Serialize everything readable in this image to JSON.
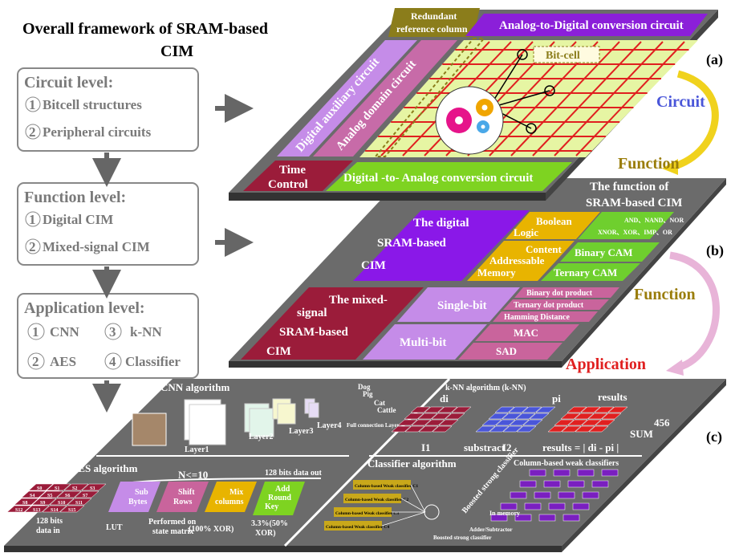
{
  "title": [
    "Overall framework of SRAM-based",
    "CIM"
  ],
  "levels": [
    {
      "title": "Circuit level:",
      "items": [
        {
          "num": "1",
          "text": "Bitcell structures"
        },
        {
          "num": "2",
          "text": "Peripheral  circuits"
        }
      ]
    },
    {
      "title": "Function level:",
      "items": [
        {
          "num": "1",
          "text": "Digital CIM"
        },
        {
          "num": "2",
          "text": "Mixed-signal CIM"
        }
      ]
    },
    {
      "title": "Application level:",
      "items": [
        {
          "num": "1",
          "text": "CNN"
        },
        {
          "num": "3",
          "text": "k-NN"
        },
        {
          "num": "2",
          "text": "AES"
        },
        {
          "num": "4",
          "text": "Classifier"
        }
      ]
    }
  ],
  "layer_a": {
    "tag": "(a)",
    "redundant": [
      "Redundant",
      "reference column"
    ],
    "adc": "Analog-to-Digital  conversion circuit",
    "bitcell": "Bit-cell",
    "digital_aux": "Digital auxiliary circuit",
    "analog_domain": "Analog domain  circuit",
    "time_control": [
      "Time",
      "Control"
    ],
    "dac": "Digital -to- Analog conversion circuit"
  },
  "side": {
    "circuit": "Circuit",
    "function_1": "Function",
    "function_2": "Function",
    "application": "Application"
  },
  "layer_b": {
    "tag": "(b)",
    "title": [
      "The  function of",
      "SRAM-based CIM"
    ],
    "digital": [
      "The digital",
      "SRAM-based",
      "CIM"
    ],
    "boolean": [
      "Boolean",
      "Logic"
    ],
    "ops": [
      "AND、NAND、NOR",
      "XNOR、XOR、IMP、OR"
    ],
    "cam": [
      "Content",
      "Addressable",
      "Memory"
    ],
    "binary_cam": "Binary CAM",
    "ternary_cam": "Ternary CAM",
    "mixed": [
      "The mixed-",
      "signal",
      "SRAM-based",
      "CIM"
    ],
    "single_bit": "Single-bit",
    "multi_bit": "Multi-bit",
    "binary_dot": "Binary dot product",
    "ternary_dot": "Ternary dot product",
    "hamming": "Hamming Distance",
    "mac": "MAC",
    "sad": "SAD"
  },
  "layer_c": {
    "tag": "(c)",
    "cnn": {
      "title": "CNN algorithm",
      "layers": [
        "Layer1",
        "Layer2",
        "Layer3",
        "Layer4"
      ],
      "classes": [
        "Dog",
        "Pig",
        "Cat",
        "Cattle"
      ],
      "fc": "Full connection Layer"
    },
    "aes": {
      "title": "AES algorithm",
      "rounds": "N<=10",
      "out": "128 bits data out",
      "sbox": [
        "S0",
        "S1",
        "S2",
        "S3",
        "S4",
        "S5",
        "S6",
        "S7",
        "S8",
        "S9",
        "S10",
        "S11",
        "S12",
        "S13",
        "S14",
        "S15"
      ],
      "steps": [
        [
          "Sub",
          "Bytes"
        ],
        [
          "Shift",
          "Rows"
        ],
        [
          "Mix",
          "columns"
        ],
        [
          "Add",
          "Round",
          "Key"
        ]
      ],
      "data_in": [
        "128 bits",
        "data in"
      ],
      "lut": "LUT",
      "performed": [
        "Performed on",
        "state matrix"
      ],
      "xor100": "(100% XOR)",
      "xor50": [
        "3.3%(50%",
        "XOR)"
      ]
    },
    "knn": {
      "title": "k-NN algorithm (k-NN)",
      "di": "di",
      "pi": "pi",
      "results": "results",
      "sum_value": "456",
      "sum": "SUM",
      "i1": "I1",
      "substract": "substract",
      "i2": "I2",
      "formula": "results = | di - pi |"
    },
    "classifier": {
      "title": "Classifier algorithm",
      "weak": "Column-based weak classifiers",
      "strong": "Boosted strong classifier",
      "weak_items": [
        "Column-based Weak classifier C1",
        "Column-based Weak classifier C2",
        "Column-based Weak classifier C3",
        "Column-based Weak classifier C4"
      ],
      "in_memory": "In memory",
      "adder": "Adder/Subtractor",
      "strong_bottom": "Boosted strong classifier"
    }
  }
}
